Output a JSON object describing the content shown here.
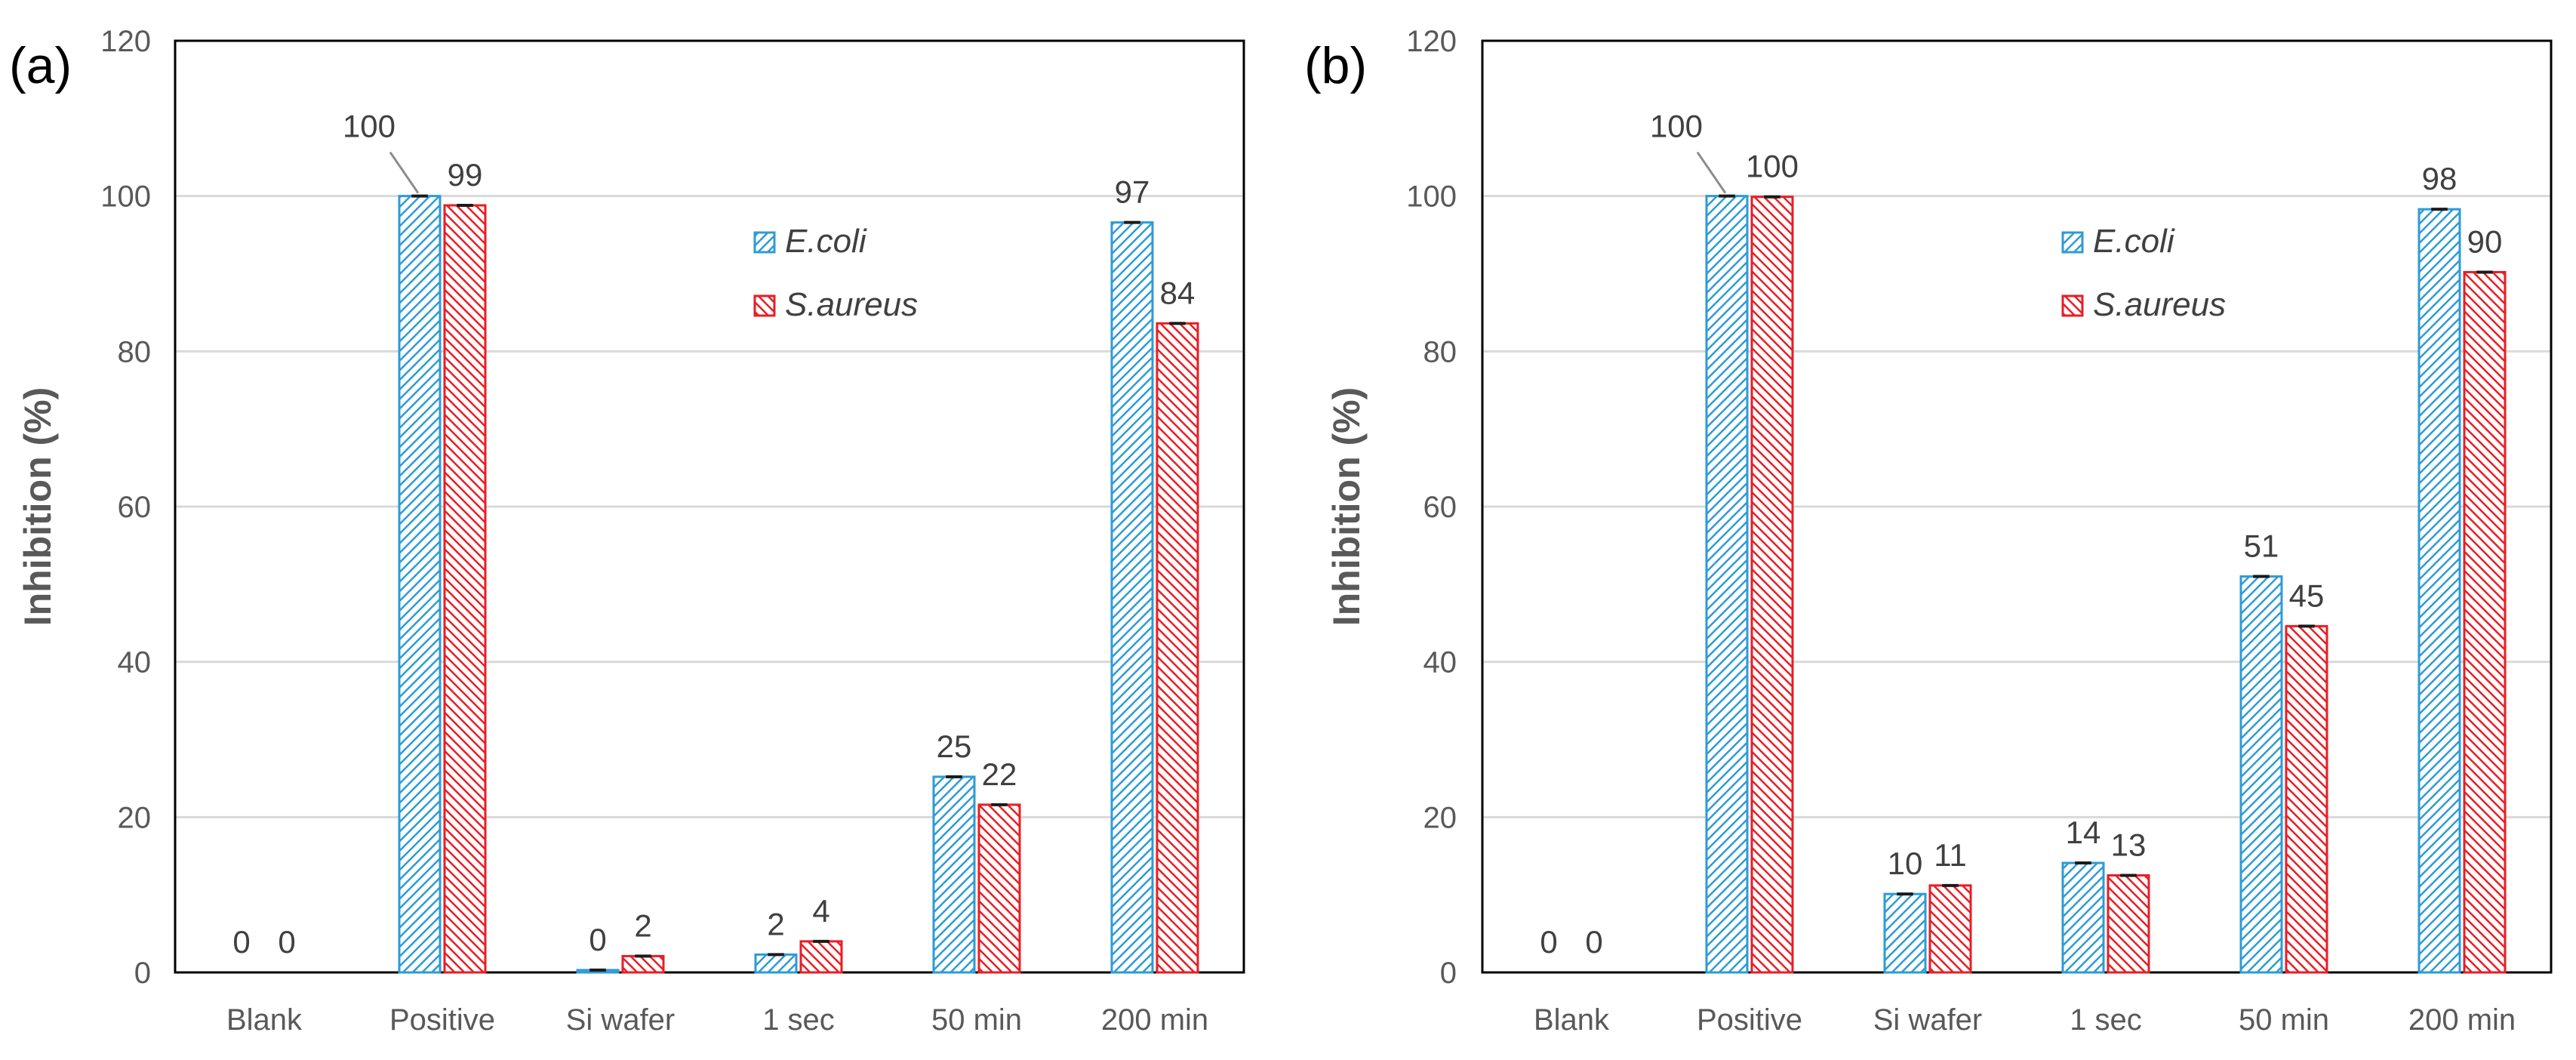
{
  "chart_data": [
    {
      "type": "bar",
      "panel_label": "(a)",
      "categories": [
        "Blank",
        "Positive",
        "Si wafer",
        "1 sec",
        "50 min",
        "200 min"
      ],
      "series": [
        {
          "name": "E.coli",
          "color": "#2E9BD6",
          "values": [
            0,
            100,
            0.3,
            2.3,
            25.2,
            96.6
          ],
          "labels": [
            "0",
            "100",
            "0",
            "2",
            "25",
            "97"
          ]
        },
        {
          "name": "S.aureus",
          "color": "#E81E25",
          "values": [
            0,
            98.8,
            2.1,
            4.0,
            21.6,
            83.6
          ],
          "labels": [
            "0",
            "99",
            "2",
            "4",
            "22",
            "84"
          ]
        }
      ],
      "title": "",
      "xlabel": "",
      "ylabel": "Inhibition (%)",
      "ylim": [
        0,
        120
      ],
      "yticks": [
        "0",
        "20",
        "40",
        "60",
        "80",
        "100",
        "120"
      ],
      "grid": true,
      "legend_position": "top-right"
    },
    {
      "type": "bar",
      "panel_label": "(b)",
      "categories": [
        "Blank",
        "Positive",
        "Si wafer",
        "1 sec",
        "50 min",
        "200 min"
      ],
      "series": [
        {
          "name": "E.coli",
          "color": "#2E9BD6",
          "values": [
            0,
            100,
            10.1,
            14.1,
            51.0,
            98.3
          ],
          "labels": [
            "0",
            "100",
            "10",
            "14",
            "51",
            "98"
          ]
        },
        {
          "name": "S.aureus",
          "color": "#E81E25",
          "values": [
            0,
            99.9,
            11.2,
            12.5,
            44.6,
            90.2
          ],
          "labels": [
            "0",
            "100",
            "11",
            "13",
            "45",
            "90"
          ]
        }
      ],
      "title": "",
      "xlabel": "",
      "ylabel": "Inhibition (%)",
      "ylim": [
        0,
        120
      ],
      "yticks": [
        "0",
        "20",
        "40",
        "60",
        "80",
        "100",
        "120"
      ],
      "grid": true,
      "legend_position": "top-right"
    }
  ]
}
